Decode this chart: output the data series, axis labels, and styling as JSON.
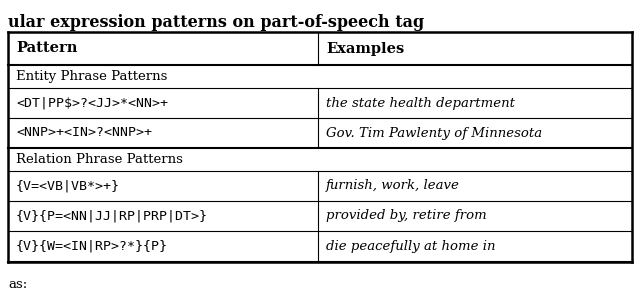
{
  "title": "ular expression patterns on part-of-speech tag",
  "footer": "as:",
  "col_headers": [
    "Pattern",
    "Examples"
  ],
  "section1_label": "Entity Phrase Patterns",
  "section2_label": "Relation Phrase Patterns",
  "rows": [
    [
      "<DT|PP$>?<JJ>*<NN>+",
      "the state health department"
    ],
    [
      "<NNP>+<IN>?<NNP>+",
      "Gov. Tim Pawlenty of Minnesota"
    ],
    [
      "{V=<VB|VB*>+}",
      "furnish, work, leave"
    ],
    [
      "{V}{P=<NN|JJ|RP|PRP|DT>}",
      "provided by, retire from"
    ],
    [
      "{V}{W=<IN|RP>?*}{P}",
      "die peacefully at home in"
    ]
  ],
  "bg_color": "#ffffff",
  "text_color": "#000000",
  "header_fontsize": 10.5,
  "body_fontsize": 9.5,
  "section_fontsize": 9.5,
  "title_fontsize": 11.5
}
